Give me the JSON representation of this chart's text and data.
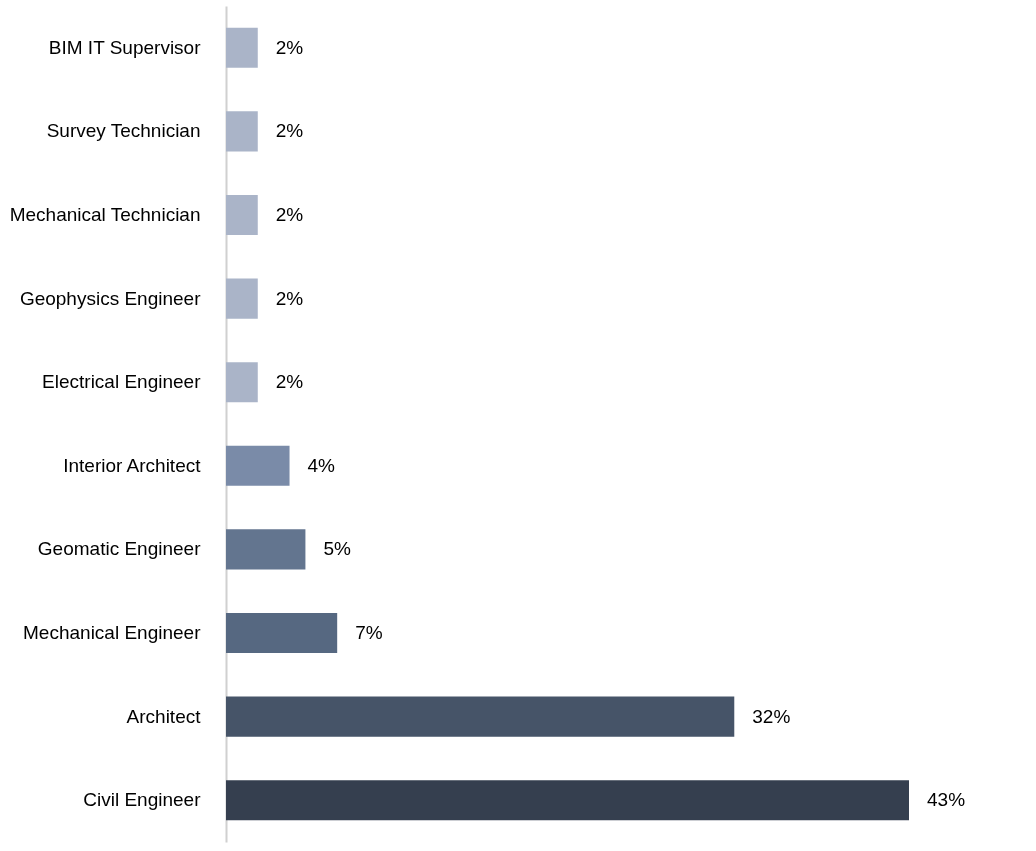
{
  "chart_data": {
    "type": "bar",
    "orientation": "horizontal",
    "categories": [
      "BIM IT Supervisor",
      "Survey Technician",
      "Mechanical Technician",
      "Geophysics Engineer",
      "Electrical Engineer",
      "Interior Architect",
      "Geomatic Engineer",
      "Mechanical Engineer",
      "Architect",
      "Civil Engineer"
    ],
    "values": [
      2,
      2,
      2,
      2,
      2,
      4,
      5,
      7,
      32,
      43
    ],
    "value_labels": [
      "2%",
      "2%",
      "2%",
      "2%",
      "2%",
      "4%",
      "5%",
      "7%",
      "32%",
      "43%"
    ],
    "colors": [
      "#aab4c8",
      "#aab4c8",
      "#aab4c8",
      "#aab4c8",
      "#aab4c8",
      "#7a8ba8",
      "#63758f",
      "#566881",
      "#465468",
      "#353f4f"
    ]
  }
}
